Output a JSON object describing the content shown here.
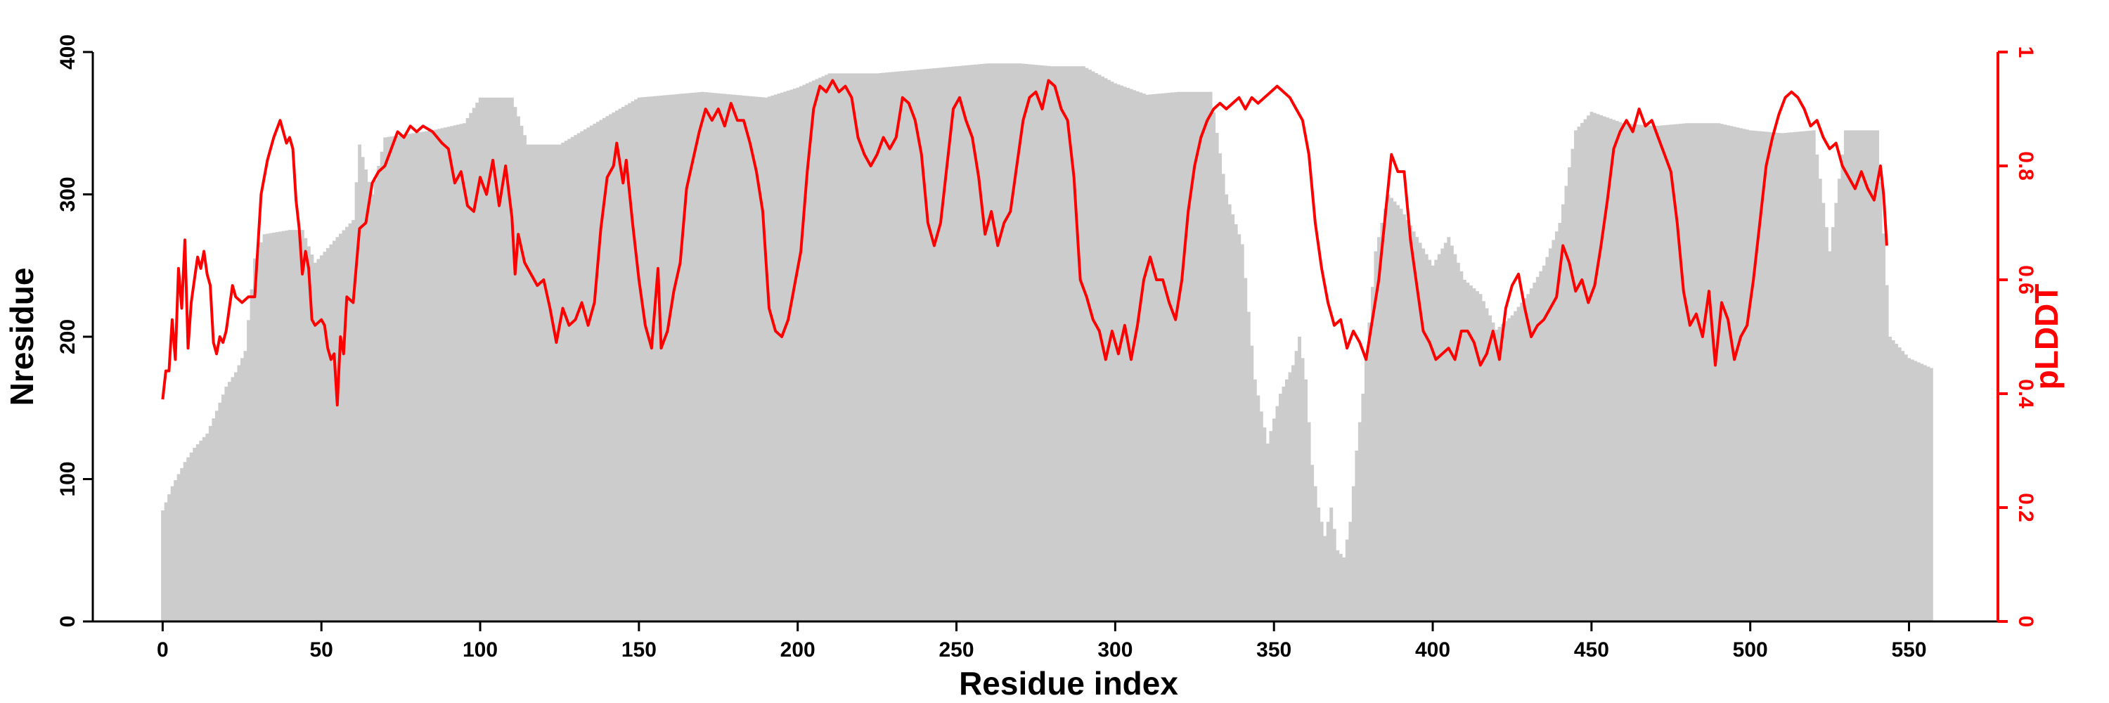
{
  "chart_data": {
    "type": "bar+line",
    "xlabel": "Residue index",
    "ylabel_left": "Nresidue",
    "ylabel_right": "pLDDT",
    "xlim": [
      -22,
      578
    ],
    "ylim_left": [
      0,
      400
    ],
    "ylim_right": [
      0,
      1
    ],
    "xticks": [
      0,
      50,
      100,
      150,
      200,
      250,
      300,
      350,
      400,
      450,
      500,
      550
    ],
    "yticks_left": [
      0,
      100,
      200,
      300,
      400
    ],
    "yticks_right": [
      0,
      0.2,
      0.4,
      0.6,
      0.8,
      1
    ],
    "yticks_right_labels": [
      "0",
      "0.2",
      "0.4",
      "0.6",
      "0.8",
      "1"
    ],
    "grid": false,
    "n_residues": 558,
    "colors": {
      "bars": "#cccccc",
      "line": "#ff0000",
      "axis": "#000000"
    },
    "bars_nresidue_anchors": [
      [
        0,
        78
      ],
      [
        3,
        95
      ],
      [
        7,
        112
      ],
      [
        10,
        122
      ],
      [
        14,
        132
      ],
      [
        17,
        148
      ],
      [
        20,
        165
      ],
      [
        23,
        175
      ],
      [
        26,
        190
      ],
      [
        29,
        255
      ],
      [
        32,
        272
      ],
      [
        40,
        275
      ],
      [
        44,
        275
      ],
      [
        48,
        252
      ],
      [
        55,
        270
      ],
      [
        60,
        282
      ],
      [
        62,
        335
      ],
      [
        66,
        300
      ],
      [
        70,
        340
      ],
      [
        85,
        345
      ],
      [
        95,
        350
      ],
      [
        100,
        368
      ],
      [
        110,
        368
      ],
      [
        115,
        335
      ],
      [
        125,
        335
      ],
      [
        140,
        355
      ],
      [
        150,
        368
      ],
      [
        160,
        370
      ],
      [
        170,
        372
      ],
      [
        180,
        370
      ],
      [
        190,
        368
      ],
      [
        200,
        375
      ],
      [
        210,
        385
      ],
      [
        225,
        385
      ],
      [
        240,
        388
      ],
      [
        250,
        390
      ],
      [
        260,
        392
      ],
      [
        270,
        392
      ],
      [
        280,
        390
      ],
      [
        290,
        390
      ],
      [
        300,
        378
      ],
      [
        310,
        370
      ],
      [
        320,
        372
      ],
      [
        330,
        372
      ],
      [
        335,
        300
      ],
      [
        340,
        265
      ],
      [
        344,
        170
      ],
      [
        348,
        125
      ],
      [
        352,
        160
      ],
      [
        356,
        180
      ],
      [
        358,
        200
      ],
      [
        360,
        170
      ],
      [
        362,
        110
      ],
      [
        364,
        80
      ],
      [
        366,
        60
      ],
      [
        368,
        80
      ],
      [
        370,
        50
      ],
      [
        372,
        45
      ],
      [
        374,
        70
      ],
      [
        376,
        120
      ],
      [
        378,
        160
      ],
      [
        382,
        260
      ],
      [
        386,
        300
      ],
      [
        390,
        290
      ],
      [
        400,
        250
      ],
      [
        405,
        270
      ],
      [
        410,
        240
      ],
      [
        415,
        230
      ],
      [
        420,
        205
      ],
      [
        425,
        215
      ],
      [
        430,
        230
      ],
      [
        435,
        250
      ],
      [
        440,
        280
      ],
      [
        445,
        345
      ],
      [
        450,
        358
      ],
      [
        460,
        350
      ],
      [
        470,
        348
      ],
      [
        480,
        350
      ],
      [
        490,
        350
      ],
      [
        500,
        345
      ],
      [
        510,
        343
      ],
      [
        520,
        345
      ],
      [
        525,
        260
      ],
      [
        530,
        345
      ],
      [
        540,
        345
      ],
      [
        544,
        200
      ],
      [
        550,
        185
      ],
      [
        557,
        178
      ]
    ],
    "plddt_anchors": [
      [
        0,
        0.39
      ],
      [
        1,
        0.44
      ],
      [
        2,
        0.44
      ],
      [
        3,
        0.53
      ],
      [
        4,
        0.46
      ],
      [
        5,
        0.62
      ],
      [
        6,
        0.55
      ],
      [
        7,
        0.67
      ],
      [
        8,
        0.48
      ],
      [
        9,
        0.56
      ],
      [
        10,
        0.6
      ],
      [
        11,
        0.64
      ],
      [
        12,
        0.62
      ],
      [
        13,
        0.65
      ],
      [
        14,
        0.61
      ],
      [
        15,
        0.59
      ],
      [
        16,
        0.49
      ],
      [
        17,
        0.47
      ],
      [
        18,
        0.5
      ],
      [
        19,
        0.49
      ],
      [
        20,
        0.51
      ],
      [
        21,
        0.55
      ],
      [
        22,
        0.59
      ],
      [
        23,
        0.57
      ],
      [
        25,
        0.56
      ],
      [
        27,
        0.57
      ],
      [
        29,
        0.57
      ],
      [
        31,
        0.75
      ],
      [
        33,
        0.81
      ],
      [
        35,
        0.85
      ],
      [
        37,
        0.88
      ],
      [
        38,
        0.86
      ],
      [
        39,
        0.84
      ],
      [
        40,
        0.85
      ],
      [
        41,
        0.83
      ],
      [
        42,
        0.74
      ],
      [
        43,
        0.69
      ],
      [
        44,
        0.61
      ],
      [
        45,
        0.65
      ],
      [
        46,
        0.62
      ],
      [
        47,
        0.53
      ],
      [
        48,
        0.52
      ],
      [
        50,
        0.53
      ],
      [
        51,
        0.52
      ],
      [
        52,
        0.48
      ],
      [
        53,
        0.46
      ],
      [
        54,
        0.47
      ],
      [
        55,
        0.38
      ],
      [
        56,
        0.5
      ],
      [
        57,
        0.47
      ],
      [
        58,
        0.57
      ],
      [
        60,
        0.56
      ],
      [
        62,
        0.69
      ],
      [
        64,
        0.7
      ],
      [
        66,
        0.77
      ],
      [
        68,
        0.79
      ],
      [
        70,
        0.8
      ],
      [
        72,
        0.83
      ],
      [
        74,
        0.86
      ],
      [
        76,
        0.85
      ],
      [
        78,
        0.87
      ],
      [
        80,
        0.86
      ],
      [
        82,
        0.87
      ],
      [
        85,
        0.86
      ],
      [
        88,
        0.84
      ],
      [
        90,
        0.83
      ],
      [
        92,
        0.77
      ],
      [
        94,
        0.79
      ],
      [
        96,
        0.73
      ],
      [
        98,
        0.72
      ],
      [
        100,
        0.78
      ],
      [
        102,
        0.75
      ],
      [
        104,
        0.81
      ],
      [
        106,
        0.73
      ],
      [
        108,
        0.8
      ],
      [
        110,
        0.71
      ],
      [
        111,
        0.61
      ],
      [
        112,
        0.68
      ],
      [
        114,
        0.63
      ],
      [
        116,
        0.61
      ],
      [
        118,
        0.59
      ],
      [
        120,
        0.6
      ],
      [
        122,
        0.55
      ],
      [
        124,
        0.49
      ],
      [
        126,
        0.55
      ],
      [
        128,
        0.52
      ],
      [
        130,
        0.53
      ],
      [
        132,
        0.56
      ],
      [
        134,
        0.52
      ],
      [
        136,
        0.56
      ],
      [
        138,
        0.69
      ],
      [
        140,
        0.78
      ],
      [
        142,
        0.8
      ],
      [
        143,
        0.84
      ],
      [
        145,
        0.77
      ],
      [
        146,
        0.81
      ],
      [
        148,
        0.7
      ],
      [
        150,
        0.6
      ],
      [
        152,
        0.52
      ],
      [
        154,
        0.48
      ],
      [
        156,
        0.62
      ],
      [
        157,
        0.48
      ],
      [
        159,
        0.51
      ],
      [
        161,
        0.58
      ],
      [
        163,
        0.63
      ],
      [
        165,
        0.76
      ],
      [
        167,
        0.81
      ],
      [
        169,
        0.86
      ],
      [
        171,
        0.9
      ],
      [
        173,
        0.88
      ],
      [
        175,
        0.9
      ],
      [
        177,
        0.87
      ],
      [
        179,
        0.91
      ],
      [
        181,
        0.88
      ],
      [
        183,
        0.88
      ],
      [
        185,
        0.84
      ],
      [
        187,
        0.79
      ],
      [
        189,
        0.72
      ],
      [
        191,
        0.55
      ],
      [
        193,
        0.51
      ],
      [
        195,
        0.5
      ],
      [
        197,
        0.53
      ],
      [
        199,
        0.59
      ],
      [
        201,
        0.65
      ],
      [
        203,
        0.79
      ],
      [
        205,
        0.9
      ],
      [
        207,
        0.94
      ],
      [
        209,
        0.93
      ],
      [
        211,
        0.95
      ],
      [
        213,
        0.93
      ],
      [
        215,
        0.94
      ],
      [
        217,
        0.92
      ],
      [
        219,
        0.85
      ],
      [
        221,
        0.82
      ],
      [
        223,
        0.8
      ],
      [
        225,
        0.82
      ],
      [
        227,
        0.85
      ],
      [
        229,
        0.83
      ],
      [
        231,
        0.85
      ],
      [
        233,
        0.92
      ],
      [
        235,
        0.91
      ],
      [
        237,
        0.88
      ],
      [
        239,
        0.82
      ],
      [
        241,
        0.7
      ],
      [
        243,
        0.66
      ],
      [
        245,
        0.7
      ],
      [
        247,
        0.8
      ],
      [
        249,
        0.9
      ],
      [
        251,
        0.92
      ],
      [
        253,
        0.88
      ],
      [
        255,
        0.85
      ],
      [
        257,
        0.78
      ],
      [
        259,
        0.68
      ],
      [
        261,
        0.72
      ],
      [
        263,
        0.66
      ],
      [
        265,
        0.7
      ],
      [
        267,
        0.72
      ],
      [
        269,
        0.8
      ],
      [
        271,
        0.88
      ],
      [
        273,
        0.92
      ],
      [
        275,
        0.93
      ],
      [
        277,
        0.9
      ],
      [
        279,
        0.95
      ],
      [
        281,
        0.94
      ],
      [
        283,
        0.9
      ],
      [
        285,
        0.88
      ],
      [
        287,
        0.78
      ],
      [
        289,
        0.6
      ],
      [
        291,
        0.57
      ],
      [
        293,
        0.53
      ],
      [
        295,
        0.51
      ],
      [
        297,
        0.46
      ],
      [
        299,
        0.51
      ],
      [
        301,
        0.47
      ],
      [
        303,
        0.52
      ],
      [
        305,
        0.46
      ],
      [
        307,
        0.52
      ],
      [
        309,
        0.6
      ],
      [
        311,
        0.64
      ],
      [
        313,
        0.6
      ],
      [
        315,
        0.6
      ],
      [
        317,
        0.56
      ],
      [
        319,
        0.53
      ],
      [
        321,
        0.6
      ],
      [
        323,
        0.72
      ],
      [
        325,
        0.8
      ],
      [
        327,
        0.85
      ],
      [
        329,
        0.88
      ],
      [
        331,
        0.9
      ],
      [
        333,
        0.91
      ],
      [
        335,
        0.9
      ],
      [
        337,
        0.91
      ],
      [
        339,
        0.92
      ],
      [
        341,
        0.9
      ],
      [
        343,
        0.92
      ],
      [
        345,
        0.91
      ],
      [
        347,
        0.92
      ],
      [
        349,
        0.93
      ],
      [
        351,
        0.94
      ],
      [
        353,
        0.93
      ],
      [
        355,
        0.92
      ],
      [
        357,
        0.9
      ],
      [
        359,
        0.88
      ],
      [
        361,
        0.82
      ],
      [
        363,
        0.7
      ],
      [
        365,
        0.62
      ],
      [
        367,
        0.56
      ],
      [
        369,
        0.52
      ],
      [
        371,
        0.53
      ],
      [
        373,
        0.48
      ],
      [
        375,
        0.51
      ],
      [
        377,
        0.49
      ],
      [
        379,
        0.46
      ],
      [
        381,
        0.53
      ],
      [
        383,
        0.6
      ],
      [
        385,
        0.71
      ],
      [
        387,
        0.82
      ],
      [
        389,
        0.79
      ],
      [
        391,
        0.79
      ],
      [
        393,
        0.67
      ],
      [
        395,
        0.59
      ],
      [
        397,
        0.51
      ],
      [
        399,
        0.49
      ],
      [
        401,
        0.46
      ],
      [
        403,
        0.47
      ],
      [
        405,
        0.48
      ],
      [
        407,
        0.46
      ],
      [
        409,
        0.51
      ],
      [
        411,
        0.51
      ],
      [
        413,
        0.49
      ],
      [
        415,
        0.45
      ],
      [
        417,
        0.47
      ],
      [
        419,
        0.51
      ],
      [
        421,
        0.46
      ],
      [
        423,
        0.55
      ],
      [
        425,
        0.59
      ],
      [
        427,
        0.61
      ],
      [
        429,
        0.55
      ],
      [
        431,
        0.5
      ],
      [
        433,
        0.52
      ],
      [
        435,
        0.53
      ],
      [
        437,
        0.55
      ],
      [
        439,
        0.57
      ],
      [
        441,
        0.66
      ],
      [
        443,
        0.63
      ],
      [
        445,
        0.58
      ],
      [
        447,
        0.6
      ],
      [
        449,
        0.56
      ],
      [
        451,
        0.59
      ],
      [
        453,
        0.66
      ],
      [
        455,
        0.74
      ],
      [
        457,
        0.83
      ],
      [
        459,
        0.86
      ],
      [
        461,
        0.88
      ],
      [
        463,
        0.86
      ],
      [
        465,
        0.9
      ],
      [
        467,
        0.87
      ],
      [
        469,
        0.88
      ],
      [
        471,
        0.85
      ],
      [
        473,
        0.82
      ],
      [
        475,
        0.79
      ],
      [
        477,
        0.7
      ],
      [
        479,
        0.58
      ],
      [
        481,
        0.52
      ],
      [
        483,
        0.54
      ],
      [
        485,
        0.5
      ],
      [
        487,
        0.58
      ],
      [
        489,
        0.45
      ],
      [
        491,
        0.56
      ],
      [
        493,
        0.53
      ],
      [
        495,
        0.46
      ],
      [
        497,
        0.5
      ],
      [
        499,
        0.52
      ],
      [
        501,
        0.6
      ],
      [
        503,
        0.7
      ],
      [
        505,
        0.8
      ],
      [
        507,
        0.85
      ],
      [
        509,
        0.89
      ],
      [
        511,
        0.92
      ],
      [
        513,
        0.93
      ],
      [
        515,
        0.92
      ],
      [
        517,
        0.9
      ],
      [
        519,
        0.87
      ],
      [
        521,
        0.88
      ],
      [
        523,
        0.85
      ],
      [
        525,
        0.83
      ],
      [
        527,
        0.84
      ],
      [
        529,
        0.8
      ],
      [
        531,
        0.78
      ],
      [
        533,
        0.76
      ],
      [
        535,
        0.79
      ],
      [
        537,
        0.76
      ],
      [
        539,
        0.74
      ],
      [
        541,
        0.8
      ],
      [
        542,
        0.75
      ],
      [
        543,
        0.66
      ]
    ]
  }
}
